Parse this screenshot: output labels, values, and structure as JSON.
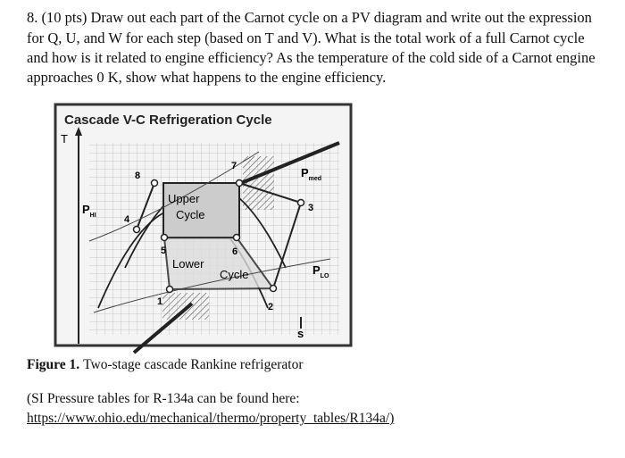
{
  "question": {
    "lines": [
      "8. (10 pts) Draw out each part of the Carnot cycle on a PV diagram and write out the expression",
      "for Q, U, and W for each step (based on T and V). What is the total work of a full Carnot cycle",
      "and how is it related to engine efficiency? As the temperature of the cold side of a Carnot engine",
      "approaches 0 K, show what happens to the engine efficiency."
    ]
  },
  "figure": {
    "title": "Cascade V-C Refrigeration Cycle",
    "y_axis": "T",
    "x_axis": "s",
    "points": [
      "1",
      "2",
      "3",
      "4",
      "5",
      "6",
      "7",
      "8"
    ],
    "upper_cycle": [
      "Upper",
      "Cycle"
    ],
    "lower_cycle": [
      "Lower",
      "Cycle"
    ],
    "pressures": [
      {
        "text": "P",
        "sub": "med"
      },
      {
        "text": "P",
        "sub": "HI"
      },
      {
        "text": "P",
        "sub": "LO"
      }
    ],
    "caption": {
      "label": "Figure 1.",
      "text": "Two-stage cascade Rankine refrigerator"
    }
  },
  "note": {
    "text": "(SI Pressure tables for R-134a can be found here:",
    "link": "https://www.ohio.edu/mechanical/thermo/property_tables/R134a/)"
  }
}
